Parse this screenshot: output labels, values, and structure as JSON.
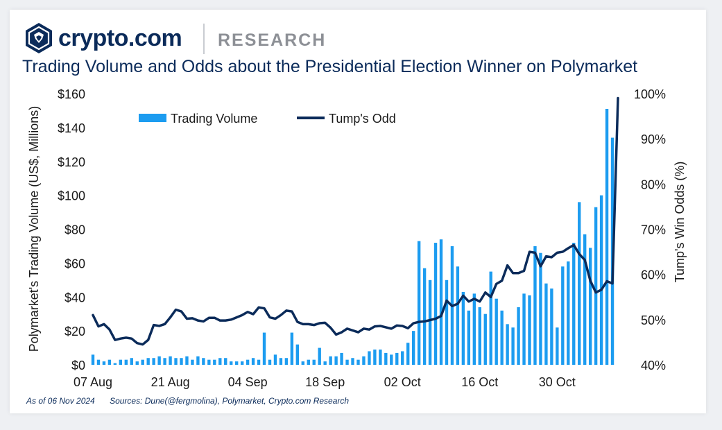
{
  "header": {
    "brand_name": "crypto.com",
    "brand_section": "RESEARCH",
    "logo_icon": "crypto-com-lion-shield-icon"
  },
  "footer": {
    "as_of": "As of 06 Nov 2024",
    "sources": "Sources: Dune(@fergmolina), Polymarket, Crypto.com Research"
  },
  "colors": {
    "volume_bar": "#1c9cf0",
    "odds_line": "#0b2b5a",
    "title": "#0b2b5a"
  },
  "chart_data": {
    "type": "bar",
    "title": "Trading Volume and Odds about the Presidential Election Winner on Polymarket",
    "ylabel": "Polymarket's Trading Volume (US$, Millions)",
    "y2label": "Tump's Win Odds (%)",
    "ylim": [
      0,
      160
    ],
    "y2lim": [
      40,
      100
    ],
    "yticks": [
      "$0",
      "$20",
      "$40",
      "$60",
      "$80",
      "$100",
      "$120",
      "$140",
      "$160"
    ],
    "y2ticks": [
      "40%",
      "50%",
      "60%",
      "70%",
      "80%",
      "90%",
      "100%"
    ],
    "xtick_labels": [
      "07 Aug",
      "21 Aug",
      "04 Sep",
      "18 Sep",
      "02 Oct",
      "16 Oct",
      "30 Oct"
    ],
    "xtick_indices": [
      0,
      14,
      28,
      42,
      56,
      70,
      84
    ],
    "legend": {
      "placement": "top",
      "entries": [
        "Trading Volume",
        "Tump's Odd"
      ]
    },
    "grid": false,
    "x_start": "2024-08-07",
    "x_end": "2024-11-06",
    "series": [
      {
        "name": "Trading Volume",
        "type": "bar",
        "axis": "left",
        "values": [
          6,
          3,
          2,
          3,
          1,
          3,
          3,
          4,
          2,
          3,
          4,
          4,
          5,
          4,
          5,
          4,
          4,
          5,
          3,
          5,
          4,
          3,
          3,
          4,
          4,
          2,
          2,
          2,
          3,
          4,
          3,
          19,
          3,
          6,
          4,
          4,
          19,
          12,
          2,
          3,
          3,
          10,
          2,
          5,
          5,
          7,
          3,
          4,
          3,
          5,
          8,
          9,
          9,
          7,
          6,
          7,
          8,
          13,
          20,
          73,
          57,
          50,
          72,
          74,
          50,
          70,
          58,
          43,
          32,
          42,
          34,
          30,
          55,
          39,
          32,
          24,
          22,
          34,
          42,
          41,
          70,
          66,
          48,
          45,
          22,
          58,
          61,
          72,
          96,
          77,
          69,
          93,
          100,
          151,
          134
        ]
      },
      {
        "name": "Tump's Odd",
        "type": "line",
        "axis": "right",
        "values": [
          51.0,
          48.5,
          49.0,
          47.8,
          45.5,
          45.8,
          46.0,
          45.8,
          44.8,
          44.5,
          45.5,
          48.8,
          48.6,
          49.0,
          50.5,
          52.2,
          51.8,
          50.2,
          50.3,
          49.8,
          49.6,
          50.4,
          50.4,
          49.8,
          49.8,
          50.0,
          50.5,
          51.0,
          51.7,
          51.2,
          52.7,
          52.5,
          50.5,
          50.2,
          51.0,
          52.0,
          51.8,
          49.5,
          49.0,
          49.0,
          48.8,
          49.2,
          49.3,
          48.2,
          46.7,
          47.2,
          48.0,
          47.6,
          47.2,
          48.0,
          47.8,
          48.5,
          48.6,
          48.3,
          48.0,
          48.7,
          48.6,
          48.1,
          49.2,
          49.5,
          49.6,
          49.9,
          50.2,
          50.8,
          54.2,
          53.0,
          53.5,
          55.3,
          54.0,
          54.6,
          54.0,
          56.0,
          55.0,
          57.9,
          58.6,
          62.0,
          60.3,
          60.3,
          60.8,
          65.0,
          64.8,
          61.8,
          64.0,
          63.8,
          64.8,
          65.0,
          65.8,
          66.5,
          64.5,
          63.2,
          58.6,
          56.0,
          56.6,
          58.5,
          58.0,
          99.0
        ]
      }
    ]
  }
}
